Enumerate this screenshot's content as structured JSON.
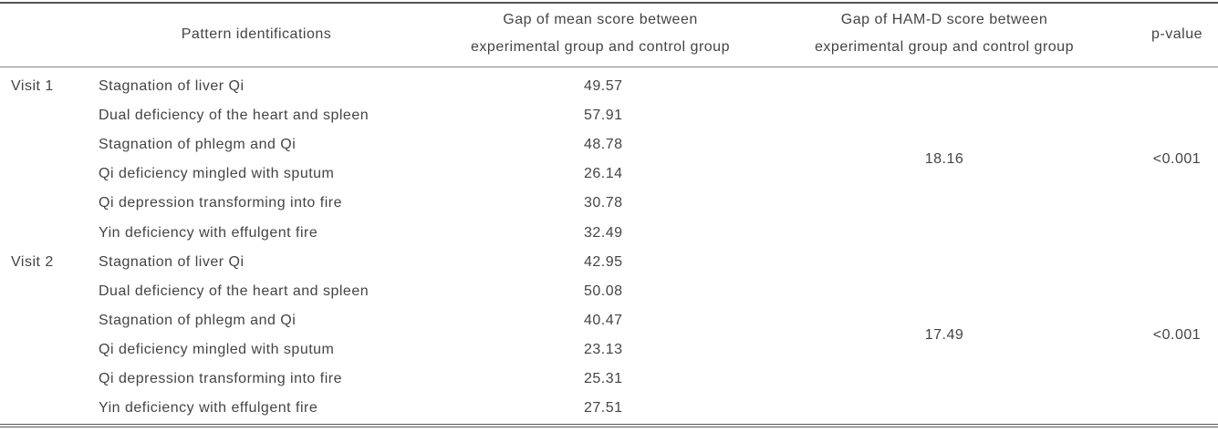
{
  "header": {
    "pattern": "Pattern identifications",
    "mean_gap": [
      "Gap of mean score between",
      "experimental group and control group"
    ],
    "hamd_gap": [
      "Gap of HAM-D score between",
      "experimental group and control group"
    ],
    "p_value": "p-value"
  },
  "visits": [
    {
      "label": "Visit 1",
      "hamd_gap": "18.16",
      "p_value": "<0.001",
      "patterns": [
        {
          "name": "Stagnation of liver Qi",
          "mean_gap": "49.57"
        },
        {
          "name": "Dual deficiency of the heart and spleen",
          "mean_gap": "57.91"
        },
        {
          "name": "Stagnation of phlegm and Qi",
          "mean_gap": "48.78"
        },
        {
          "name": "Qi deficiency mingled with sputum",
          "mean_gap": "26.14"
        },
        {
          "name": "Qi depression transforming into fire",
          "mean_gap": "30.78"
        },
        {
          "name": "Yin deficiency with effulgent fire",
          "mean_gap": "32.49"
        }
      ]
    },
    {
      "label": "Visit 2",
      "hamd_gap": "17.49",
      "p_value": "<0.001",
      "patterns": [
        {
          "name": "Stagnation of liver Qi",
          "mean_gap": "42.95"
        },
        {
          "name": "Dual deficiency of the heart and spleen",
          "mean_gap": "50.08"
        },
        {
          "name": "Stagnation of phlegm and Qi",
          "mean_gap": "40.47"
        },
        {
          "name": "Qi deficiency mingled with sputum",
          "mean_gap": "23.13"
        },
        {
          "name": "Qi depression transforming into fire",
          "mean_gap": "25.31"
        },
        {
          "name": "Yin deficiency with effulgent fire",
          "mean_gap": "27.51"
        }
      ]
    }
  ]
}
